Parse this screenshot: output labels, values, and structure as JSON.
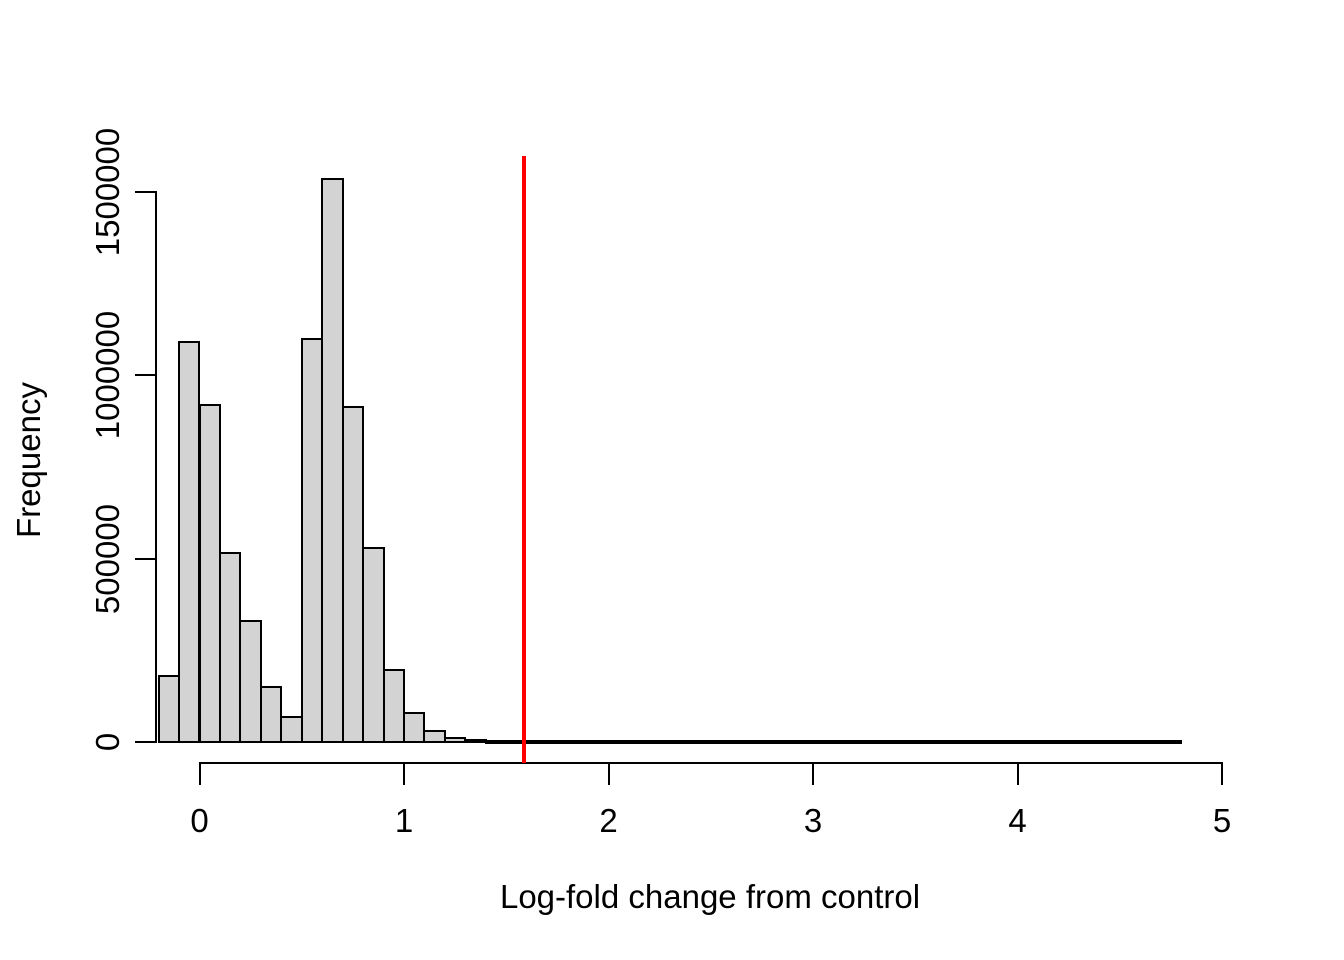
{
  "figure": {
    "background": "#ffffff",
    "bar_fill": "#d3d3d3",
    "bar_border": "#000000",
    "axis_color": "#000000",
    "text_color": "#000000"
  },
  "chart_data": {
    "type": "bar",
    "subtype": "histogram",
    "title": "",
    "xlabel": "Log-fold change from control",
    "ylabel": "Frequency",
    "bin_start": -0.2,
    "bin_width": 0.1,
    "bin_end": 4.8,
    "counts": [
      180000,
      1090000,
      920000,
      515000,
      330000,
      150000,
      67000,
      1100000,
      1535000,
      915000,
      528000,
      197000,
      80000,
      30000,
      12000,
      5500,
      2700,
      0,
      0,
      0,
      0,
      0,
      0,
      0,
      0,
      0,
      0,
      0,
      0,
      0,
      0,
      0,
      0,
      0,
      0,
      0,
      0,
      0,
      0,
      0,
      0,
      0,
      0,
      0,
      0,
      0,
      0,
      0,
      0,
      0
    ],
    "x_ticks": [
      0,
      1,
      2,
      3,
      4,
      5
    ],
    "x_tick_labels": [
      "0",
      "1",
      "2",
      "3",
      "4",
      "5"
    ],
    "y_ticks": [
      0,
      500000,
      1000000,
      1500000
    ],
    "y_tick_labels": [
      "0",
      "500000",
      "1000000",
      "1500000"
    ],
    "xlim": [
      -0.4,
      5.0
    ],
    "ylim": [
      0,
      1600000
    ],
    "grid": "off",
    "legend": "none",
    "vline": {
      "x": 1.585,
      "color": "#ff0000"
    }
  }
}
